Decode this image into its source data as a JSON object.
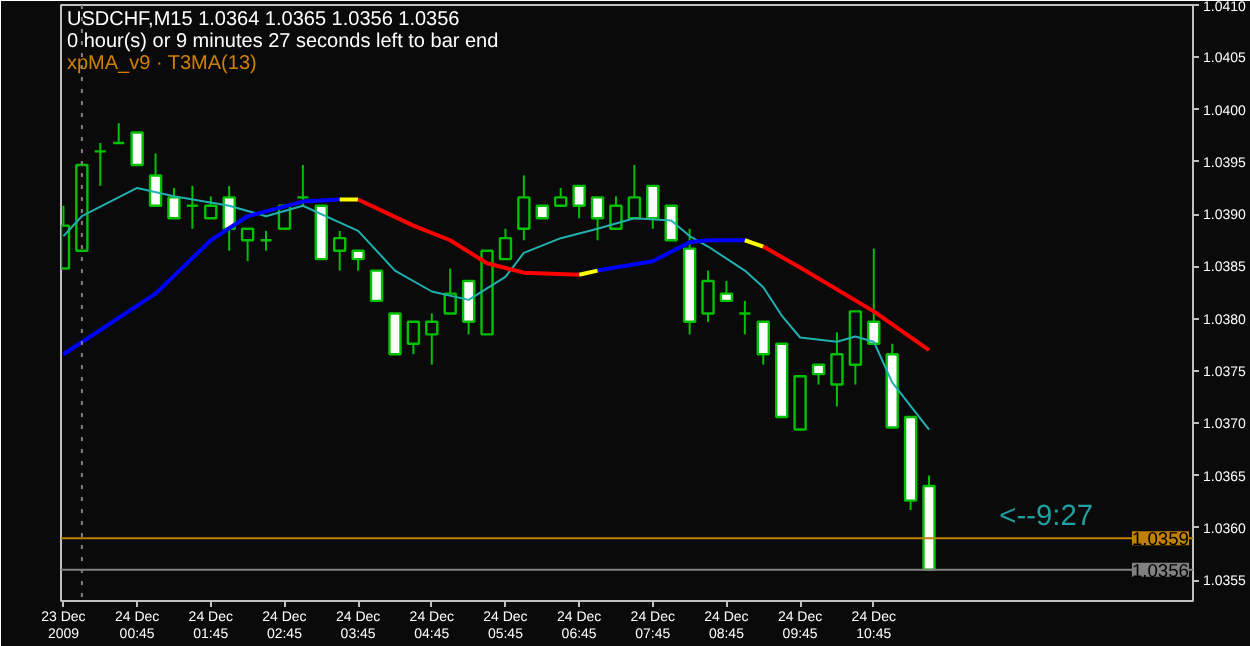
{
  "chart_data": {
    "type": "candlestick",
    "title": "USDCHF,M15  1.0364 1.0365 1.0356 1.0356",
    "subtitle": "0 hour(s) or 9 minutes 27 seconds left to bar end",
    "annotations": [
      "xpMA_v9 · T3MA(13)",
      "<--9:27"
    ],
    "color": "#00c000",
    "x": [
      "2009-12-23T23:45",
      "2009-12-24T00:00",
      "2009-12-24T00:15",
      "2009-12-24T00:30",
      "2009-12-24T00:45",
      "2009-12-24T01:00",
      "2009-12-24T01:15",
      "2009-12-24T01:30",
      "2009-12-24T01:45",
      "2009-12-24T02:00",
      "2009-12-24T02:15",
      "2009-12-24T02:30",
      "2009-12-24T02:45",
      "2009-12-24T03:00",
      "2009-12-24T03:15",
      "2009-12-24T03:30",
      "2009-12-24T03:45",
      "2009-12-24T04:00",
      "2009-12-24T04:15",
      "2009-12-24T04:30",
      "2009-12-24T04:45",
      "2009-12-24T05:00",
      "2009-12-24T05:15",
      "2009-12-24T05:30",
      "2009-12-24T05:45",
      "2009-12-24T06:00",
      "2009-12-24T06:15",
      "2009-12-24T06:30",
      "2009-12-24T06:45",
      "2009-12-24T07:00",
      "2009-12-24T07:15",
      "2009-12-24T07:30",
      "2009-12-24T07:45",
      "2009-12-24T08:00",
      "2009-12-24T08:15",
      "2009-12-24T08:30",
      "2009-12-24T08:45",
      "2009-12-24T09:00",
      "2009-12-24T09:15",
      "2009-12-24T09:30",
      "2009-12-24T09:45",
      "2009-12-24T10:00",
      "2009-12-24T10:15",
      "2009-12-24T10:30",
      "2009-12-24T10:45",
      "2009-12-24T11:00",
      "2009-12-24T11:15",
      "2009-12-24T11:30"
    ],
    "ohlc": [
      [
        1.03848,
        1.03908,
        1.03848,
        1.03889
      ],
      [
        1.03865,
        1.0395,
        1.03865,
        1.03947
      ],
      [
        1.0396,
        1.03968,
        1.03927,
        1.0396
      ],
      [
        1.03968,
        1.03987,
        1.03968,
        1.03968
      ],
      [
        1.03978,
        1.03978,
        1.03947,
        1.03947
      ],
      [
        1.03937,
        1.03958,
        1.03908,
        1.03908
      ],
      [
        1.03916,
        1.03925,
        1.03896,
        1.03896
      ],
      [
        1.03908,
        1.03927,
        1.03886,
        1.03908
      ],
      [
        1.03896,
        1.03917,
        1.03896,
        1.03908
      ],
      [
        1.03916,
        1.03927,
        1.03865,
        1.03886
      ],
      [
        1.03875,
        1.03886,
        1.03855,
        1.03886
      ],
      [
        1.03875,
        1.03884,
        1.03865,
        1.03875
      ],
      [
        1.03886,
        1.03908,
        1.03886,
        1.03908
      ],
      [
        1.03916,
        1.03947,
        1.03908,
        1.03916
      ],
      [
        1.03908,
        1.03908,
        1.03857,
        1.03857
      ],
      [
        1.03865,
        1.03884,
        1.03846,
        1.03877
      ],
      [
        1.03865,
        1.03865,
        1.03846,
        1.03857
      ],
      [
        1.03846,
        1.03846,
        1.03817,
        1.03817
      ],
      [
        1.03805,
        1.03805,
        1.03766,
        1.03766
      ],
      [
        1.03776,
        1.03797,
        1.03766,
        1.03797
      ],
      [
        1.03785,
        1.03805,
        1.03756,
        1.03797
      ],
      [
        1.03805,
        1.03848,
        1.03805,
        1.03824
      ],
      [
        1.03836,
        1.03836,
        1.03785,
        1.03797
      ],
      [
        1.03785,
        1.03865,
        1.03785,
        1.03865
      ],
      [
        1.03857,
        1.03886,
        1.03857,
        1.03877
      ],
      [
        1.03886,
        1.03937,
        1.03875,
        1.03916
      ],
      [
        1.03908,
        1.03908,
        1.03896,
        1.03896
      ],
      [
        1.03908,
        1.03925,
        1.03908,
        1.03916
      ],
      [
        1.03927,
        1.03927,
        1.03896,
        1.03908
      ],
      [
        1.03916,
        1.03916,
        1.03875,
        1.03896
      ],
      [
        1.03886,
        1.03917,
        1.03886,
        1.03908
      ],
      [
        1.03896,
        1.03947,
        1.03896,
        1.03916
      ],
      [
        1.03927,
        1.03927,
        1.03886,
        1.03896
      ],
      [
        1.03908,
        1.03908,
        1.03875,
        1.03875
      ],
      [
        1.03867,
        1.03886,
        1.03785,
        1.03797
      ],
      [
        1.03805,
        1.03846,
        1.03797,
        1.03836
      ],
      [
        1.03824,
        1.03836,
        1.03817,
        1.03817
      ],
      [
        1.03805,
        1.03817,
        1.03785,
        1.03805
      ],
      [
        1.03797,
        1.03797,
        1.03756,
        1.03766
      ],
      [
        1.03776,
        1.03776,
        1.03706,
        1.03706
      ],
      [
        1.03694,
        1.03745,
        1.03694,
        1.03745
      ],
      [
        1.03756,
        1.03756,
        1.03737,
        1.03747
      ],
      [
        1.03737,
        1.03787,
        1.03716,
        1.03766
      ],
      [
        1.03756,
        1.03807,
        1.03737,
        1.03807
      ],
      [
        1.03797,
        1.03867,
        1.03776,
        1.03776
      ],
      [
        1.03766,
        1.03776,
        1.03696,
        1.03696
      ],
      [
        1.03706,
        1.03706,
        1.03617,
        1.03626
      ],
      [
        1.0364,
        1.0365,
        1.0356,
        1.0356
      ]
    ],
    "series": [
      {
        "type": "line",
        "color": "#20b0b0",
        "x": [
          "2009-12-23T23:45",
          "2009-12-24T00:00",
          "2009-12-24T00:45",
          "2009-12-24T01:15",
          "2009-12-24T02:00",
          "2009-12-24T02:30",
          "2009-12-24T03:00",
          "2009-12-24T03:45",
          "2009-12-24T04:15",
          "2009-12-24T04:45",
          "2009-12-24T05:15",
          "2009-12-24T05:45",
          "2009-12-24T06:00",
          "2009-12-24T06:30",
          "2009-12-24T07:00",
          "2009-12-24T07:30",
          "2009-12-24T08:00",
          "2009-12-24T08:15",
          "2009-12-24T08:30",
          "2009-12-24T09:00",
          "2009-12-24T09:15",
          "2009-12-24T09:30",
          "2009-12-24T09:45",
          "2009-12-24T10:15",
          "2009-12-24T10:30",
          "2009-12-24T10:45",
          "2009-12-24T11:00",
          "2009-12-24T11:30"
        ],
        "values": [
          1.03879,
          1.03898,
          1.03925,
          1.03917,
          1.03908,
          1.03898,
          1.03908,
          1.03884,
          1.03846,
          1.03826,
          1.03818,
          1.0384,
          1.03863,
          1.03877,
          1.03886,
          1.03896,
          1.03894,
          1.03879,
          1.03869,
          1.03846,
          1.0383,
          1.03803,
          1.03782,
          1.03778,
          1.03783,
          1.03778,
          1.03739,
          1.03694
        ]
      },
      {
        "type": "line",
        "color": "#0000ff",
        "x": [
          "2009-12-23T23:45",
          "2009-12-24T01:00",
          "2009-12-24T01:45",
          "2009-12-24T02:15",
          "2009-12-24T03:00",
          "2009-12-24T03:30",
          "2009-12-24T05:00",
          "2009-12-24T07:00",
          "2009-12-24T07:45",
          "2009-12-24T08:15",
          "2009-12-24T08:30",
          "2009-12-24T09:00"
        ],
        "values": [
          1.03766,
          1.03824,
          1.03875,
          1.03898,
          1.03912,
          1.03914,
          null,
          1.03846,
          1.03855,
          1.03873,
          1.03875,
          1.03875
        ]
      },
      {
        "type": "line",
        "color": "#ffff00",
        "x": [
          "2009-12-24T03:30",
          "2009-12-24T03:45",
          "2009-12-24T05:00",
          "2009-12-24T06:45",
          "2009-12-24T07:00",
          "2009-12-24T08:00",
          "2009-12-24T09:00",
          "2009-12-24T09:15"
        ],
        "values": [
          1.03914,
          1.03914,
          null,
          1.03842,
          1.03846,
          null,
          1.03875,
          1.03869
        ]
      },
      {
        "type": "line",
        "color": "#ff0000",
        "x": [
          "2009-12-24T03:45",
          "2009-12-24T04:30",
          "2009-12-24T05:00",
          "2009-12-24T05:30",
          "2009-12-24T06:00",
          "2009-12-24T06:45",
          "2009-12-24T08:00",
          "2009-12-24T09:15",
          "2009-12-24T09:45",
          "2009-12-24T10:45",
          "2009-12-24T11:30"
        ],
        "values": [
          1.03914,
          1.03889,
          1.03875,
          1.03853,
          1.03844,
          1.03842,
          null,
          1.03869,
          1.03849,
          1.03807,
          1.0377
        ]
      }
    ],
    "ref_lines": [
      {
        "axis": "x",
        "value": "2009-12-24T00:00",
        "label": null,
        "color": "#808080",
        "line_style": "dotted"
      },
      {
        "axis": "y",
        "value": 1.0359,
        "label": "1.0359",
        "color": "#c08000",
        "line_style": "solid"
      },
      {
        "axis": "y",
        "value": 1.0356,
        "label": "1.0356",
        "color": "#808080",
        "line_style": "solid"
      }
    ],
    "xlim": [
      "2009-12-23T23:43",
      "2009-12-24T15:05"
    ],
    "xticks": [
      {
        "value": "2009-12-23T23:45",
        "label": "23 Dec 2009"
      },
      {
        "value": "2009-12-24T00:45",
        "label": "24 Dec 00:45"
      },
      {
        "value": "2009-12-24T01:45",
        "label": "24 Dec 01:45"
      },
      {
        "value": "2009-12-24T02:45",
        "label": "24 Dec 02:45"
      },
      {
        "value": "2009-12-24T03:45",
        "label": "24 Dec 03:45"
      },
      {
        "value": "2009-12-24T04:45",
        "label": "24 Dec 04:45"
      },
      {
        "value": "2009-12-24T05:45",
        "label": "24 Dec 05:45"
      },
      {
        "value": "2009-12-24T06:45",
        "label": "24 Dec 06:45"
      },
      {
        "value": "2009-12-24T07:45",
        "label": "24 Dec 07:45"
      },
      {
        "value": "2009-12-24T08:45",
        "label": "24 Dec 08:45"
      },
      {
        "value": "2009-12-24T09:45",
        "label": "24 Dec 09:45"
      },
      {
        "value": "2009-12-24T10:45",
        "label": "24 Dec 10:45"
      }
    ],
    "ylim": [
      1.0353,
      1.041
    ],
    "yticks": [
      1.0355,
      {
        "value": 1.036,
        "label": "1.0360"
      },
      1.0365,
      {
        "value": 1.037,
        "label": "1.0370"
      },
      1.0375,
      {
        "value": 1.038,
        "label": "1.0380"
      },
      1.0385,
      {
        "value": 1.039,
        "label": "1.0390"
      },
      1.0395,
      {
        "value": 1.04,
        "label": "1.0400"
      },
      1.0405,
      {
        "value": 1.041,
        "label": "1.0410"
      }
    ],
    "grid": false
  }
}
